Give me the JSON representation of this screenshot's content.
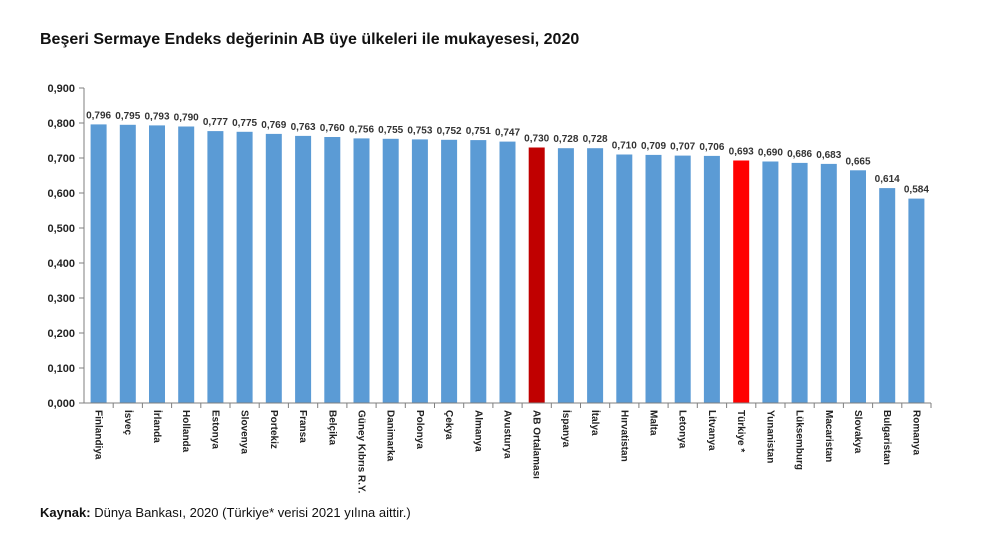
{
  "title": "Beşeri Sermaye Endeks değerinin AB üye ülkeleri ile mukayesesi, 2020",
  "source": {
    "label": "Kaynak:",
    "text": "Dünya Bankası, 2020 (Türkiye* verisi 2021 yılına aittir.)"
  },
  "colors": {
    "bar": "#5B9BD5",
    "ab_average": "#C00000",
    "turkey": "#FF0000",
    "axis": "#7F7F7F"
  },
  "chart_data": {
    "type": "bar",
    "title": "Beşeri Sermaye Endeks değerinin AB üye ülkeleri ile mukayesesi, 2020",
    "xlabel": "",
    "ylabel": "",
    "ylim": [
      0,
      0.9
    ],
    "yticks": [
      "0,000",
      "0,100",
      "0,200",
      "0,300",
      "0,400",
      "0,500",
      "0,600",
      "0,700",
      "0,800",
      "0,900"
    ],
    "grid": false,
    "categories": [
      "Finlandiya",
      "İsveç",
      "İrlanda",
      "Hollanda",
      "Estonya",
      "Slovenya",
      "Portekiz",
      "Fransa",
      "Belçika",
      "Güney Kıbrıs R.Y.",
      "Danimarka",
      "Polonya",
      "Çekya",
      "Almanya",
      "Avusturya",
      "AB Ortalaması",
      "İspanya",
      "İtalya",
      "Hırvatistan",
      "Malta",
      "Letonya",
      "Litvanya",
      "Türkiye *",
      "Yunanistan",
      "Lüksemburg",
      "Macaristan",
      "Slovakya",
      "Bulgaristan",
      "Romanya"
    ],
    "values": [
      0.796,
      0.795,
      0.793,
      0.79,
      0.777,
      0.775,
      0.769,
      0.763,
      0.76,
      0.756,
      0.755,
      0.753,
      0.752,
      0.751,
      0.747,
      0.73,
      0.728,
      0.728,
      0.71,
      0.709,
      0.707,
      0.706,
      0.693,
      0.69,
      0.686,
      0.683,
      0.665,
      0.614,
      0.584
    ],
    "labels": [
      "0,796",
      "0,795",
      "0,793",
      "0,790",
      "0,777",
      "0,775",
      "0,769",
      "0,763",
      "0,760",
      "0,756",
      "0,755",
      "0,753",
      "0,752",
      "0,751",
      "0,747",
      "0,730",
      "0,728",
      "0,728",
      "0,710",
      "0,709",
      "0,707",
      "0,706",
      "0,693",
      "0,690",
      "0,686",
      "0,683",
      "0,665",
      "0,614",
      "0,584"
    ],
    "highlight": {
      "AB Ortalaması": "ab_average",
      "Türkiye *": "turkey"
    }
  }
}
